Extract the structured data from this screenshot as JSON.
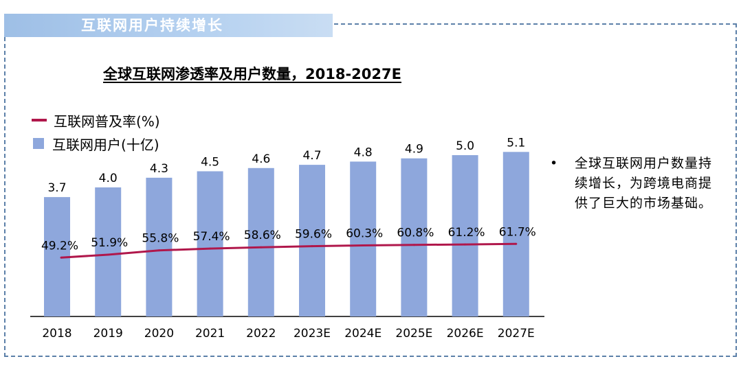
{
  "section_tab": "互联网用户持续增长",
  "bullet_text": "全球互联网用户数量持续增长，为跨境电商提供了巨大的市场基础。",
  "colors": {
    "bar": "#8ea7dc",
    "line": "#b0174b",
    "tab": "#9ebfe6",
    "frame": "#5b7fa8"
  },
  "chart_data": {
    "type": "bar+line",
    "title": "全球互联网渗透率及用户数量，2018-2027E",
    "xlabel": "",
    "ylabel": "",
    "categories": [
      "2018",
      "2019",
      "2020",
      "2021",
      "2022",
      "2023E",
      "2024E",
      "2025E",
      "2026E",
      "2027E"
    ],
    "series": [
      {
        "name": "互联网用户(十亿)",
        "type": "bar",
        "values": [
          3.7,
          4.0,
          4.3,
          4.5,
          4.6,
          4.7,
          4.8,
          4.9,
          5.0,
          5.1
        ],
        "labels": [
          "3.7",
          "4.0",
          "4.3",
          "4.5",
          "4.6",
          "4.7",
          "4.8",
          "4.9",
          "5.0",
          "5.1"
        ]
      },
      {
        "name": "互联网普及率(%)",
        "type": "line",
        "values": [
          49.2,
          51.9,
          55.8,
          57.4,
          58.6,
          59.6,
          60.3,
          60.8,
          61.2,
          61.7
        ],
        "labels": [
          "49.2%",
          "51.9%",
          "55.8%",
          "57.4%",
          "58.6%",
          "59.6%",
          "60.3%",
          "60.8%",
          "61.2%",
          "61.7%"
        ]
      }
    ],
    "bar_ylim": [
      0,
      6.5
    ],
    "line_ylim": [
      0,
      90
    ],
    "grid": false,
    "legend_position": "top-left"
  }
}
